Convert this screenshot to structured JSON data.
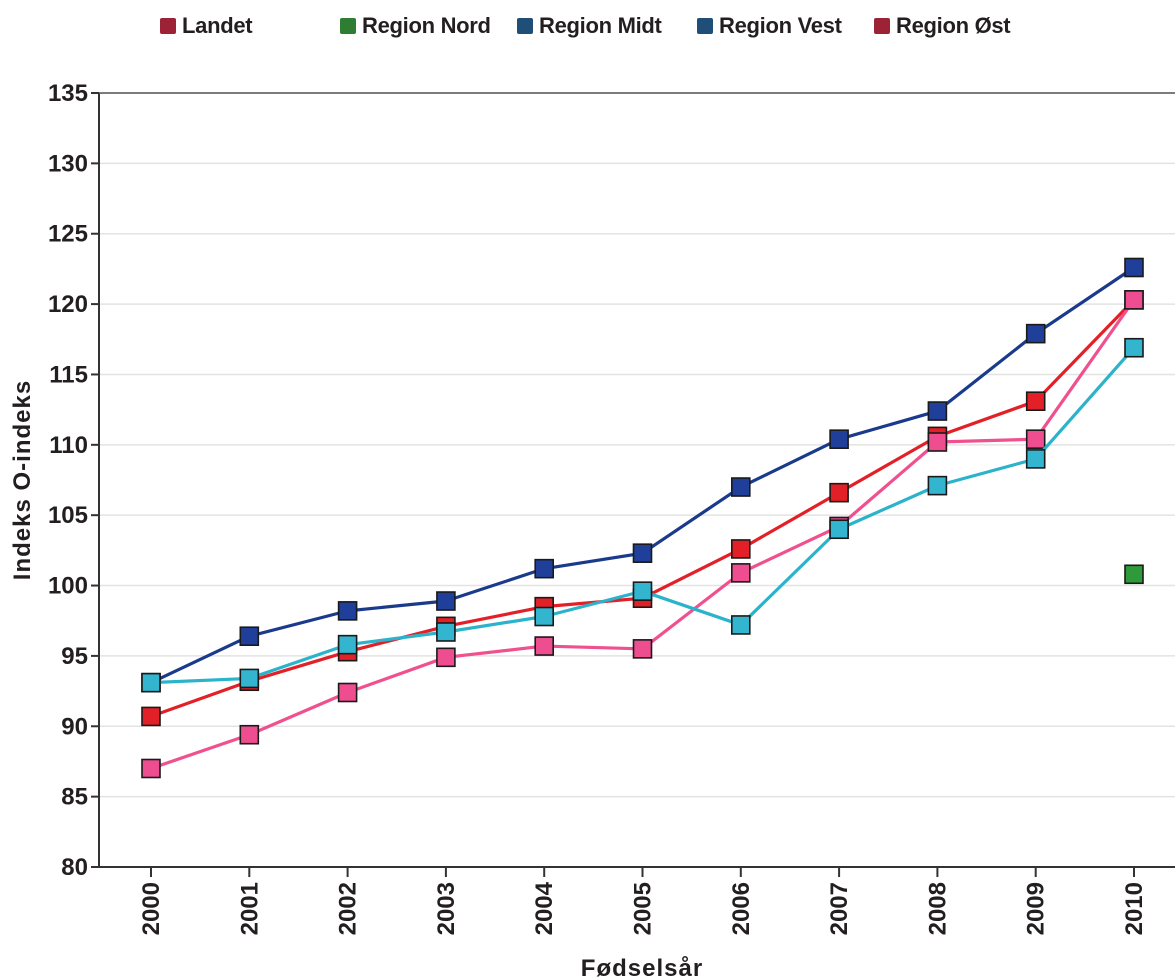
{
  "chart_data": {
    "type": "line",
    "xlabel": "Fødselsår",
    "ylabel": "Indeks O-indeks",
    "ylim": [
      80,
      135
    ],
    "yticks": [
      "80",
      "85",
      "90",
      "95",
      "100",
      "105",
      "110",
      "115",
      "120",
      "125",
      "130",
      "135"
    ],
    "categories": [
      "2000",
      "2001",
      "2002",
      "2003",
      "2004",
      "2005",
      "2006",
      "2007",
      "2008",
      "2009",
      "2010"
    ],
    "grid": "horizontal",
    "legend": {
      "position": "top",
      "entries": [
        {
          "label": "Landet",
          "color": "#9b2335"
        },
        {
          "label": "Region Nord",
          "color": "#2e7d32"
        },
        {
          "label": "Region Midt",
          "color": "#1f4e79"
        },
        {
          "label": "Region Vest",
          "color": "#1f4e79"
        },
        {
          "label": "Region Øst",
          "color": "#9b2335"
        }
      ]
    },
    "series": [
      {
        "name": "Region Nord",
        "line_color": "#2e7d32",
        "marker_color": "#2e9a3a",
        "values": [
          null,
          null,
          null,
          null,
          null,
          null,
          null,
          null,
          null,
          null,
          100.8
        ]
      },
      {
        "name": "Region Vest",
        "line_color": "#1a3a8c",
        "marker_color": "#1f3f9a",
        "values": [
          93.1,
          96.4,
          98.2,
          98.9,
          101.2,
          102.3,
          107.0,
          110.4,
          112.4,
          117.9,
          122.6
        ]
      },
      {
        "name": "Landet",
        "line_color": "#e32027",
        "marker_color": "#e32027",
        "values": [
          90.7,
          93.2,
          95.3,
          97.1,
          98.5,
          99.1,
          102.6,
          106.6,
          110.6,
          113.1,
          120.3
        ]
      },
      {
        "name": "Region Øst",
        "line_color": "#f0508e",
        "marker_color": "#ee4d8f",
        "values": [
          87.0,
          89.4,
          92.4,
          94.9,
          95.7,
          95.5,
          100.9,
          104.2,
          110.2,
          110.4,
          120.3
        ]
      },
      {
        "name": "Region Midt",
        "line_color": "#2bb3cc",
        "marker_color": "#33b5d0",
        "values": [
          93.1,
          93.4,
          95.8,
          96.7,
          97.8,
          99.6,
          97.2,
          104.0,
          107.1,
          109.0,
          116.9
        ]
      }
    ]
  }
}
